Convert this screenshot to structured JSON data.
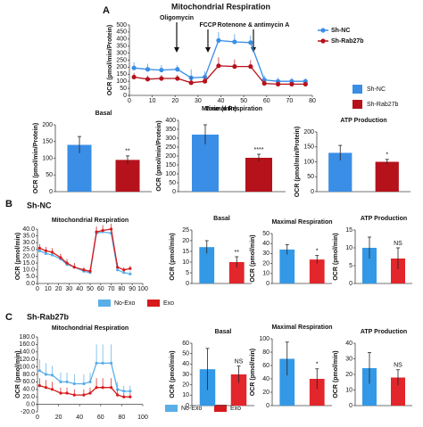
{
  "panels": [
    {
      "label": "A"
    },
    {
      "label": "B",
      "title": "Sh-NC"
    },
    {
      "label": "C",
      "title": "Sh-Rab27b"
    }
  ],
  "chart_data": [
    {
      "type": "line",
      "title": "Mitochondrial Respiration",
      "xlabel": "Time (min)",
      "ylabel": "OCR (pmol/min/Protein)",
      "legend": "right",
      "annotations": [
        "Oligomycin",
        "FCCP",
        "Rotenone & antimycin A"
      ],
      "x": [
        2,
        8,
        14,
        21,
        27,
        33,
        39,
        46,
        53,
        59,
        65,
        71,
        77
      ],
      "xlim": [
        0,
        80
      ],
      "xticks": [
        0,
        10,
        20,
        30,
        40,
        50,
        60,
        70,
        80
      ],
      "ylim": [
        0,
        500
      ],
      "yticks": [
        0,
        50,
        100,
        150,
        200,
        250,
        300,
        350,
        400,
        450,
        500
      ],
      "series": [
        {
          "name": "Sh-NC",
          "color": "#3a8ee6",
          "values": [
            195,
            185,
            180,
            185,
            125,
            130,
            390,
            380,
            375,
            110,
            100,
            100,
            100
          ],
          "errors": [
            40,
            40,
            35,
            30,
            60,
            40,
            60,
            55,
            50,
            30,
            25,
            25,
            20
          ]
        },
        {
          "name": "Sh-Rab27b",
          "color": "#b5121b",
          "values": [
            130,
            115,
            120,
            120,
            90,
            100,
            210,
            205,
            205,
            85,
            80,
            80,
            80
          ],
          "errors": [
            30,
            25,
            25,
            25,
            40,
            30,
            60,
            50,
            45,
            20,
            20,
            15,
            15
          ]
        }
      ]
    },
    {
      "type": "bar",
      "title": "Basal",
      "ylabel": "OCR (pmol/min/Protein)",
      "ylim": [
        0,
        200
      ],
      "yticks": [
        0,
        50,
        100,
        150,
        200
      ],
      "values": [
        140,
        95
      ],
      "errors": [
        25,
        12
      ],
      "colors": [
        "#3a8ee6",
        "#b5121b"
      ],
      "annotation": "**"
    },
    {
      "type": "bar",
      "title": "Maximal Respiration",
      "ylabel": "OCR (pmol/min/Protein)",
      "ylim": [
        0,
        400
      ],
      "yticks": [
        0,
        50,
        100,
        150,
        200,
        250,
        300,
        350,
        400
      ],
      "values": [
        320,
        190
      ],
      "errors": [
        55,
        20
      ],
      "colors": [
        "#3a8ee6",
        "#b5121b"
      ],
      "annotation": "****"
    },
    {
      "type": "bar",
      "title": "ATP Production",
      "ylabel": "OCR (pmol/min/Protein)",
      "ylim": [
        0,
        200
      ],
      "yticks": [
        0,
        50,
        100,
        150,
        200
      ],
      "values": [
        130,
        100
      ],
      "errors": [
        25,
        8
      ],
      "colors": [
        "#3a8ee6",
        "#b5121b"
      ],
      "annotation": "*"
    },
    {
      "type": "line",
      "title": "Mitochondrial Respiration",
      "ylabel": "OCR (pmol/min)",
      "legend": "bottom",
      "x": [
        2,
        8,
        14,
        22,
        28,
        35,
        44,
        50,
        56,
        62,
        70,
        76,
        82,
        88
      ],
      "xlim": [
        0,
        100
      ],
      "xticks": [
        0,
        10,
        20,
        30,
        40,
        50,
        60,
        70,
        80,
        90,
        100
      ],
      "ylim": [
        0,
        40
      ],
      "yticks": [
        {
          "value": 0,
          "label": "0.0"
        },
        {
          "value": 5,
          "label": "5.0"
        },
        {
          "value": 10,
          "label": "10.0"
        },
        {
          "value": 15,
          "label": "15.0"
        },
        {
          "value": 20,
          "label": "20.0"
        },
        {
          "value": 25,
          "label": "25.0"
        },
        {
          "value": 30,
          "label": "30.0"
        },
        {
          "value": 35,
          "label": "35.0"
        },
        {
          "value": 40,
          "label": "40.0"
        }
      ],
      "series": [
        {
          "name": "No-Exo",
          "color": "#5aaee8",
          "values": [
            24,
            22,
            21,
            18,
            14,
            12,
            9,
            8,
            37,
            38,
            37,
            10,
            8,
            7
          ],
          "errors": [
            3,
            3,
            3,
            3,
            3,
            3,
            2,
            2,
            4,
            4,
            4,
            3,
            2,
            2
          ]
        },
        {
          "name": "Exo",
          "color": "#d7191c",
          "values": [
            26,
            24,
            23,
            19,
            15,
            12,
            10,
            9,
            38,
            39,
            40,
            12,
            10,
            11
          ],
          "errors": [
            3,
            3,
            3,
            3,
            3,
            3,
            2,
            2,
            4,
            4,
            4,
            3,
            2,
            2
          ]
        }
      ]
    },
    {
      "type": "bar",
      "title": "Basal",
      "ylabel": "OCR (pmol/min)",
      "ylim": [
        0,
        25
      ],
      "yticks": [
        0,
        5,
        10,
        15,
        20,
        25
      ],
      "values": [
        17,
        10
      ],
      "errors": [
        3,
        2.5
      ],
      "colors": [
        "#3399e6",
        "#e2262b"
      ],
      "annotation": "**"
    },
    {
      "type": "bar",
      "title": "Maximal Respiration",
      "ylabel": "OCR (pmol/min)",
      "ylim": [
        0,
        50
      ],
      "yticks": [
        0,
        10,
        20,
        30,
        40,
        50
      ],
      "values": [
        34,
        24
      ],
      "errors": [
        5,
        4
      ],
      "colors": [
        "#3399e6",
        "#e2262b"
      ],
      "annotation": "*"
    },
    {
      "type": "bar",
      "title": "ATP Production",
      "ylabel": "OCR (pmol/min)",
      "ylim": [
        0,
        15
      ],
      "yticks": [
        0,
        5,
        10,
        15
      ],
      "values": [
        10,
        7
      ],
      "errors": [
        3,
        3
      ],
      "colors": [
        "#3399e6",
        "#e2262b"
      ],
      "annotation": "NS"
    },
    {
      "type": "line",
      "title": "Mitochondrial Respiration",
      "ylabel": "OCR (pmol/min)",
      "legend": "bottom",
      "x": [
        2,
        8,
        14,
        22,
        28,
        35,
        44,
        50,
        56,
        62,
        70,
        76,
        82,
        88
      ],
      "xlim": [
        0,
        100
      ],
      "xticks": [
        0,
        20,
        40,
        60,
        80,
        100
      ],
      "ylim": [
        -20,
        180
      ],
      "yticks": [
        {
          "value": -20,
          "label": "-20.0"
        },
        {
          "value": 0,
          "label": "0.0"
        },
        {
          "value": 20,
          "label": "20.0"
        },
        {
          "value": 40,
          "label": "40.0"
        },
        {
          "value": 60,
          "label": "60.0"
        },
        {
          "value": 80,
          "label": "80.0"
        },
        {
          "value": 100,
          "label": "100.0"
        },
        {
          "value": 120,
          "label": "120.0"
        },
        {
          "value": 140,
          "label": "140.0"
        },
        {
          "value": 160,
          "label": "160.0"
        },
        {
          "value": 180,
          "label": "180.0"
        }
      ],
      "series": [
        {
          "name": "No-Exo",
          "color": "#5aaee8",
          "values": [
            90,
            80,
            78,
            60,
            60,
            55,
            55,
            60,
            110,
            110,
            110,
            40,
            35,
            35
          ],
          "errors": [
            30,
            30,
            25,
            25,
            25,
            25,
            25,
            25,
            50,
            50,
            50,
            20,
            15,
            15
          ]
        },
        {
          "name": "Exo",
          "color": "#d7191c",
          "values": [
            50,
            45,
            40,
            30,
            30,
            25,
            25,
            30,
            45,
            45,
            45,
            25,
            20,
            20
          ],
          "errors": [
            20,
            20,
            20,
            15,
            15,
            15,
            15,
            15,
            25,
            25,
            25,
            15,
            10,
            10
          ]
        }
      ]
    },
    {
      "type": "bar",
      "title": "Basal",
      "ylabel": "OCR (pmol/min)",
      "ylim": [
        0,
        60
      ],
      "yticks": [
        0,
        10,
        20,
        30,
        40,
        50,
        60
      ],
      "values": [
        35,
        30
      ],
      "errors": [
        20,
        8
      ],
      "colors": [
        "#3399e6",
        "#e2262b"
      ],
      "annotation": "NS"
    },
    {
      "type": "bar",
      "title": "Maximal Respiration",
      "ylabel": "OCR (pmol/min)",
      "ylim": [
        0,
        100
      ],
      "yticks": [
        0,
        20,
        40,
        60,
        80,
        100
      ],
      "values": [
        70,
        40
      ],
      "errors": [
        25,
        15
      ],
      "colors": [
        "#3399e6",
        "#e2262b"
      ],
      "annotation": "*"
    },
    {
      "type": "bar",
      "title": "ATP Production",
      "ylabel": "OCR (pmol/min)",
      "ylim": [
        0,
        40
      ],
      "yticks": [
        0,
        10,
        20,
        30,
        40
      ],
      "values": [
        24,
        18
      ],
      "errors": [
        10,
        5
      ],
      "colors": [
        "#3399e6",
        "#e2262b"
      ],
      "annotation": "NS"
    }
  ]
}
